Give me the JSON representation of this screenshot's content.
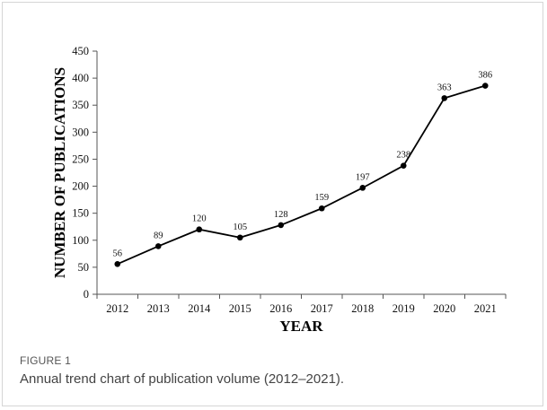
{
  "figure": {
    "label": "FIGURE 1",
    "caption": "Annual trend chart of publication volume (2012–2021)."
  },
  "chart_data": {
    "type": "line",
    "categories": [
      "2012",
      "2013",
      "2014",
      "2015",
      "2016",
      "2017",
      "2018",
      "2019",
      "2020",
      "2021"
    ],
    "values": [
      56,
      89,
      120,
      105,
      128,
      159,
      197,
      238,
      363,
      386
    ],
    "data_labels": [
      "56",
      "89",
      "120",
      "105",
      "128",
      "159",
      "197",
      "238",
      "363",
      "386"
    ],
    "xlabel": "YEAR",
    "ylabel": "NUMBER OF PUBLICATIONS",
    "ylim": [
      0,
      450
    ],
    "yticks": [
      0,
      50,
      100,
      150,
      200,
      250,
      300,
      350,
      400,
      450
    ],
    "grid": false,
    "line_color": "#000000",
    "marker": "circle"
  }
}
